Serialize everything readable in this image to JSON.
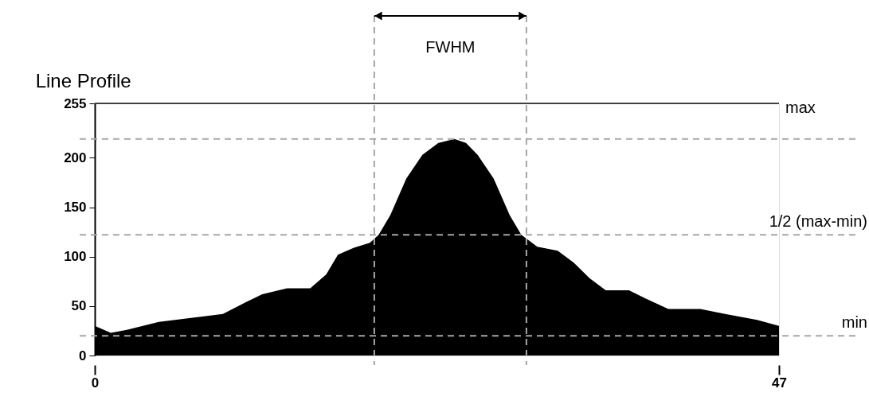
{
  "chart_data": {
    "type": "area",
    "title": "Line Profile",
    "x": [
      0,
      1.1,
      2.2,
      4.4,
      6.6,
      8.8,
      10.4,
      11.5,
      13.2,
      14.8,
      15.9,
      16.7,
      17.8,
      18.9,
      19.5,
      20.3,
      21.4,
      22.5,
      23.6,
      24.7,
      25.5,
      26.3,
      27.4,
      28.5,
      29.3,
      30.4,
      31.8,
      32.9,
      34,
      35.1,
      36.7,
      37.8,
      39.4,
      41.6,
      43.3,
      45.5,
      47
    ],
    "series": [
      {
        "color": "#000000",
        "values": [
          30,
          23,
          26,
          34,
          38,
          42,
          54,
          62,
          68,
          68,
          82,
          102,
          109,
          114,
          122,
          142,
          179,
          203,
          215,
          219,
          215,
          203,
          179,
          142,
          122,
          110,
          106,
          94,
          78,
          66,
          66,
          58,
          47,
          47,
          42,
          36,
          30
        ]
      }
    ],
    "xlim": [
      0,
      47
    ],
    "xticks": [
      0,
      47
    ],
    "ylim": [
      0,
      255
    ],
    "yticks": [
      0,
      50,
      100,
      150,
      200,
      255
    ],
    "grid": false,
    "ref_lines": [
      {
        "axis": "y",
        "value": 255,
        "label": "max",
        "color": "#404040",
        "line_style": "solid"
      },
      {
        "axis": "y",
        "value": 219,
        "label": null,
        "color": "#a6a6a6",
        "line_style": "dashed"
      },
      {
        "axis": "y",
        "value": 122,
        "label": "1/2 (max-min)",
        "color": "#a6a6a6",
        "line_style": "dashed"
      },
      {
        "axis": "y",
        "value": 20,
        "label": "min",
        "color": "#a6a6a6",
        "line_style": "dashed"
      },
      {
        "axis": "x",
        "value": 19.2,
        "label": null,
        "color": "#a6a6a6",
        "line_style": "dashed"
      },
      {
        "axis": "x",
        "value": 29.65,
        "label": null,
        "color": "#a6a6a6",
        "line_style": "dashed"
      }
    ],
    "annotations": [
      "FWHM"
    ]
  }
}
